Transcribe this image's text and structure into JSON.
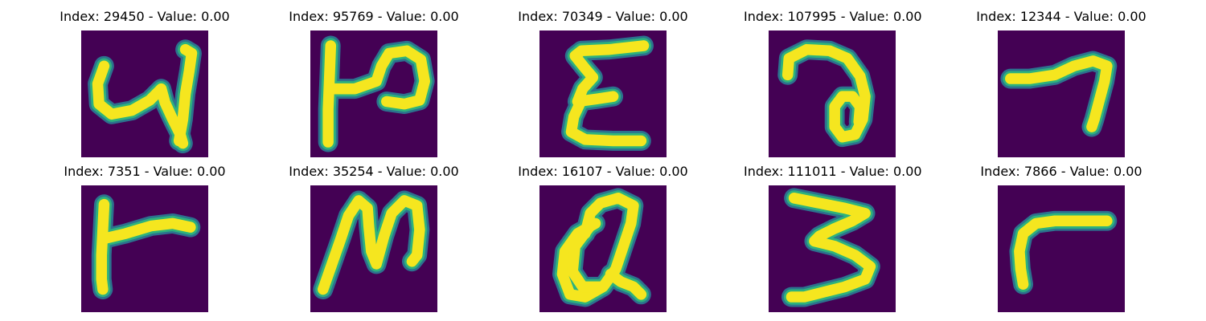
{
  "colors": {
    "background": "#440154",
    "stroke_core": "#f5e61f",
    "stroke_mid": "#2db27d",
    "stroke_edge": "#2c728e"
  },
  "panels": [
    {
      "title": "Index: 29450 - Value: 0.00",
      "image": {
        "type": "handwritten-glyph",
        "strokes": [
          [
            [
              0.18,
              0.28
            ],
            [
              0.13,
              0.42
            ],
            [
              0.14,
              0.58
            ],
            [
              0.24,
              0.66
            ],
            [
              0.4,
              0.63
            ],
            [
              0.54,
              0.55
            ],
            [
              0.63,
              0.46
            ],
            [
              0.66,
              0.57
            ],
            [
              0.72,
              0.7
            ],
            [
              0.78,
              0.82
            ],
            [
              0.8,
              0.89
            ]
          ],
          [
            [
              0.77,
              0.87
            ],
            [
              0.8,
              0.7
            ],
            [
              0.82,
              0.5
            ],
            [
              0.85,
              0.32
            ],
            [
              0.87,
              0.18
            ],
            [
              0.82,
              0.15
            ]
          ]
        ]
      }
    },
    {
      "title": "Index: 95769 - Value: 0.00",
      "image": {
        "type": "handwritten-glyph",
        "strokes": [
          [
            [
              0.16,
              0.12
            ],
            [
              0.15,
              0.38
            ],
            [
              0.14,
              0.62
            ],
            [
              0.14,
              0.88
            ]
          ],
          [
            [
              0.16,
              0.46
            ],
            [
              0.35,
              0.46
            ],
            [
              0.52,
              0.4
            ],
            [
              0.56,
              0.28
            ],
            [
              0.62,
              0.18
            ],
            [
              0.76,
              0.16
            ],
            [
              0.87,
              0.23
            ],
            [
              0.9,
              0.4
            ],
            [
              0.86,
              0.55
            ],
            [
              0.74,
              0.58
            ],
            [
              0.6,
              0.56
            ]
          ]
        ]
      }
    },
    {
      "title": "Index: 70349 - Value: 0.00",
      "image": {
        "type": "handwritten-glyph",
        "strokes": [
          [
            [
              0.82,
              0.12
            ],
            [
              0.55,
              0.15
            ],
            [
              0.33,
              0.16
            ],
            [
              0.28,
              0.2
            ],
            [
              0.36,
              0.3
            ],
            [
              0.42,
              0.37
            ],
            [
              0.34,
              0.46
            ],
            [
              0.3,
              0.56
            ],
            [
              0.45,
              0.54
            ],
            [
              0.58,
              0.52
            ]
          ],
          [
            [
              0.33,
              0.55
            ],
            [
              0.27,
              0.68
            ],
            [
              0.25,
              0.8
            ],
            [
              0.36,
              0.86
            ],
            [
              0.58,
              0.87
            ],
            [
              0.8,
              0.87
            ]
          ]
        ]
      }
    },
    {
      "title": "Index: 107995 - Value: 0.00",
      "image": {
        "type": "handwritten-glyph",
        "strokes": [
          [
            [
              0.15,
              0.35
            ],
            [
              0.16,
              0.22
            ],
            [
              0.3,
              0.15
            ],
            [
              0.48,
              0.16
            ],
            [
              0.62,
              0.22
            ],
            [
              0.72,
              0.36
            ],
            [
              0.76,
              0.52
            ],
            [
              0.74,
              0.7
            ],
            [
              0.68,
              0.82
            ],
            [
              0.58,
              0.84
            ],
            [
              0.52,
              0.76
            ],
            [
              0.52,
              0.6
            ],
            [
              0.58,
              0.52
            ],
            [
              0.66,
              0.52
            ],
            [
              0.72,
              0.6
            ],
            [
              0.71,
              0.72
            ]
          ]
        ]
      }
    },
    {
      "title": "Index: 12344 - Value: 0.00",
      "image": {
        "type": "handwritten-glyph",
        "strokes": [
          [
            [
              0.1,
              0.38
            ],
            [
              0.25,
              0.38
            ],
            [
              0.45,
              0.35
            ],
            [
              0.6,
              0.28
            ],
            [
              0.75,
              0.24
            ],
            [
              0.86,
              0.28
            ],
            [
              0.84,
              0.4
            ],
            [
              0.8,
              0.55
            ],
            [
              0.76,
              0.7
            ],
            [
              0.74,
              0.76
            ]
          ]
        ]
      }
    },
    {
      "title": "Index: 7351 - Value: 0.00",
      "image": {
        "type": "handwritten-glyph",
        "strokes": [
          [
            [
              0.18,
              0.15
            ],
            [
              0.17,
              0.35
            ],
            [
              0.16,
              0.55
            ],
            [
              0.16,
              0.74
            ],
            [
              0.17,
              0.82
            ]
          ],
          [
            [
              0.18,
              0.42
            ],
            [
              0.35,
              0.38
            ],
            [
              0.55,
              0.32
            ],
            [
              0.72,
              0.3
            ],
            [
              0.86,
              0.33
            ]
          ]
        ]
      }
    },
    {
      "title": "Index: 35254 - Value: 0.00",
      "image": {
        "type": "handwritten-glyph",
        "strokes": [
          [
            [
              0.1,
              0.82
            ],
            [
              0.17,
              0.62
            ],
            [
              0.24,
              0.42
            ],
            [
              0.3,
              0.24
            ],
            [
              0.38,
              0.12
            ],
            [
              0.45,
              0.18
            ],
            [
              0.46,
              0.32
            ],
            [
              0.48,
              0.52
            ],
            [
              0.52,
              0.62
            ],
            [
              0.58,
              0.4
            ],
            [
              0.64,
              0.22
            ],
            [
              0.74,
              0.12
            ],
            [
              0.84,
              0.16
            ],
            [
              0.86,
              0.35
            ],
            [
              0.84,
              0.55
            ],
            [
              0.8,
              0.6
            ]
          ]
        ]
      }
    },
    {
      "title": "Index: 16107 - Value: 0.00",
      "image": {
        "type": "handwritten-glyph",
        "strokes": [
          [
            [
              0.44,
              0.3
            ],
            [
              0.3,
              0.38
            ],
            [
              0.2,
              0.52
            ],
            [
              0.18,
              0.7
            ],
            [
              0.24,
              0.86
            ],
            [
              0.36,
              0.88
            ],
            [
              0.5,
              0.8
            ],
            [
              0.6,
              0.66
            ],
            [
              0.66,
              0.48
            ],
            [
              0.72,
              0.3
            ],
            [
              0.74,
              0.16
            ],
            [
              0.62,
              0.1
            ],
            [
              0.48,
              0.14
            ],
            [
              0.4,
              0.22
            ],
            [
              0.36,
              0.38
            ]
          ],
          [
            [
              0.4,
              0.32
            ],
            [
              0.28,
              0.48
            ],
            [
              0.26,
              0.68
            ],
            [
              0.34,
              0.8
            ],
            [
              0.48,
              0.8
            ]
          ],
          [
            [
              0.56,
              0.7
            ],
            [
              0.64,
              0.76
            ],
            [
              0.74,
              0.8
            ],
            [
              0.8,
              0.86
            ]
          ]
        ]
      }
    },
    {
      "title": "Index: 111011 - Value: 0.00",
      "image": {
        "type": "handwritten-glyph",
        "strokes": [
          [
            [
              0.2,
              0.1
            ],
            [
              0.4,
              0.14
            ],
            [
              0.6,
              0.18
            ],
            [
              0.76,
              0.22
            ],
            [
              0.66,
              0.28
            ],
            [
              0.52,
              0.34
            ],
            [
              0.4,
              0.4
            ],
            [
              0.36,
              0.44
            ],
            [
              0.52,
              0.48
            ],
            [
              0.68,
              0.55
            ],
            [
              0.8,
              0.64
            ],
            [
              0.76,
              0.74
            ],
            [
              0.6,
              0.8
            ],
            [
              0.44,
              0.84
            ],
            [
              0.28,
              0.88
            ],
            [
              0.18,
              0.88
            ]
          ]
        ]
      }
    },
    {
      "title": "Index: 7866 - Value: 0.00",
      "image": {
        "type": "handwritten-glyph",
        "strokes": [
          [
            [
              0.86,
              0.28
            ],
            [
              0.65,
              0.28
            ],
            [
              0.45,
              0.28
            ],
            [
              0.3,
              0.3
            ],
            [
              0.2,
              0.38
            ],
            [
              0.17,
              0.52
            ],
            [
              0.18,
              0.66
            ],
            [
              0.2,
              0.78
            ]
          ]
        ]
      }
    }
  ]
}
